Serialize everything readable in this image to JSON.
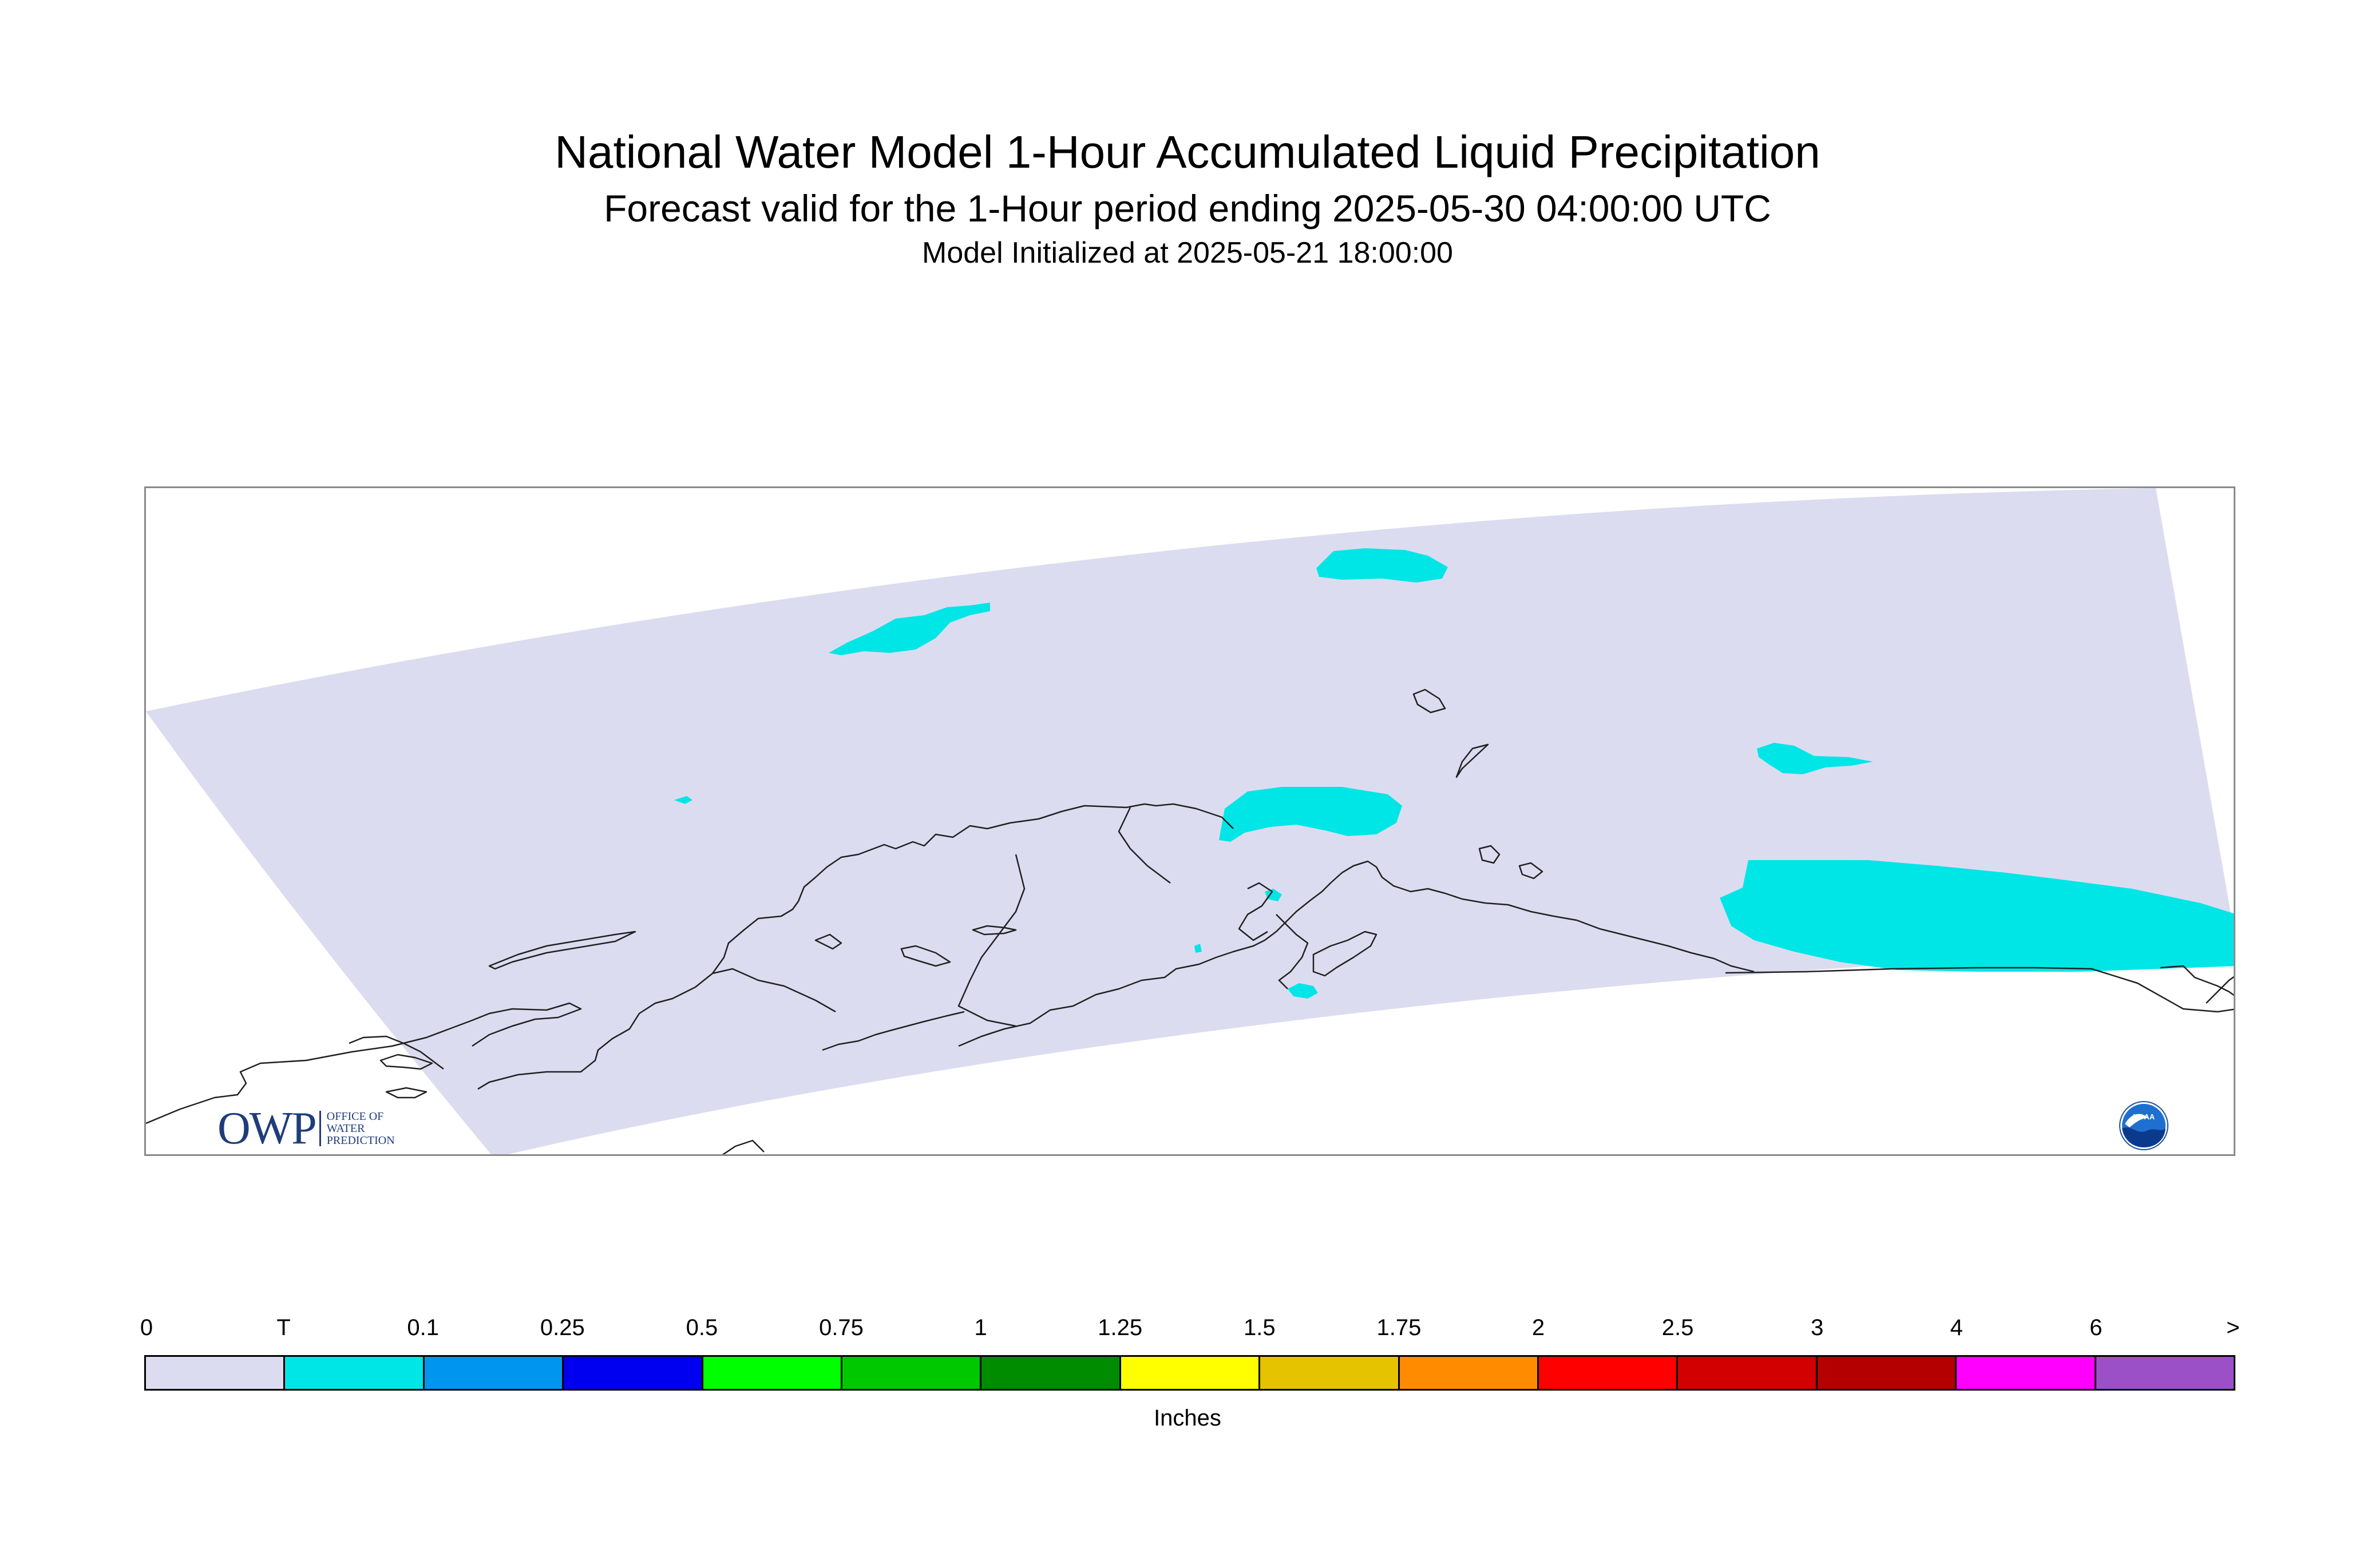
{
  "title": "National Water Model 1-Hour Accumulated Liquid Precipitation",
  "subtitle": "Forecast valid for the 1-Hour period ending 2025-05-30 04:00:00 UTC",
  "init_line": "Model Initialized at 2025-05-21 18:00:00",
  "map": {
    "region": "Alaska",
    "domain_fill_color": "#dcdcf0",
    "precip_color": "#00e6e6",
    "coastline_color": "#202020"
  },
  "logos": {
    "owp": {
      "letters": "OWP",
      "line1": "OFFICE OF",
      "line2": "WATER",
      "line3": "PREDICTION"
    },
    "noaa": {
      "text": "NOAA"
    }
  },
  "legend": {
    "units": "Inches",
    "labels": [
      "0",
      "T",
      "0.1",
      "0.25",
      "0.5",
      "0.75",
      "1",
      "1.25",
      "1.5",
      "1.75",
      "2",
      "2.5",
      "3",
      "4",
      "6",
      ">"
    ],
    "colors": [
      "#dcdcf0",
      "#00e6e6",
      "#0096f0",
      "#0000f0",
      "#00ff00",
      "#00c800",
      "#008c00",
      "#ffff00",
      "#e6c300",
      "#ff8c00",
      "#ff0000",
      "#d20000",
      "#b40000",
      "#ff00ff",
      "#9b50c8"
    ]
  }
}
